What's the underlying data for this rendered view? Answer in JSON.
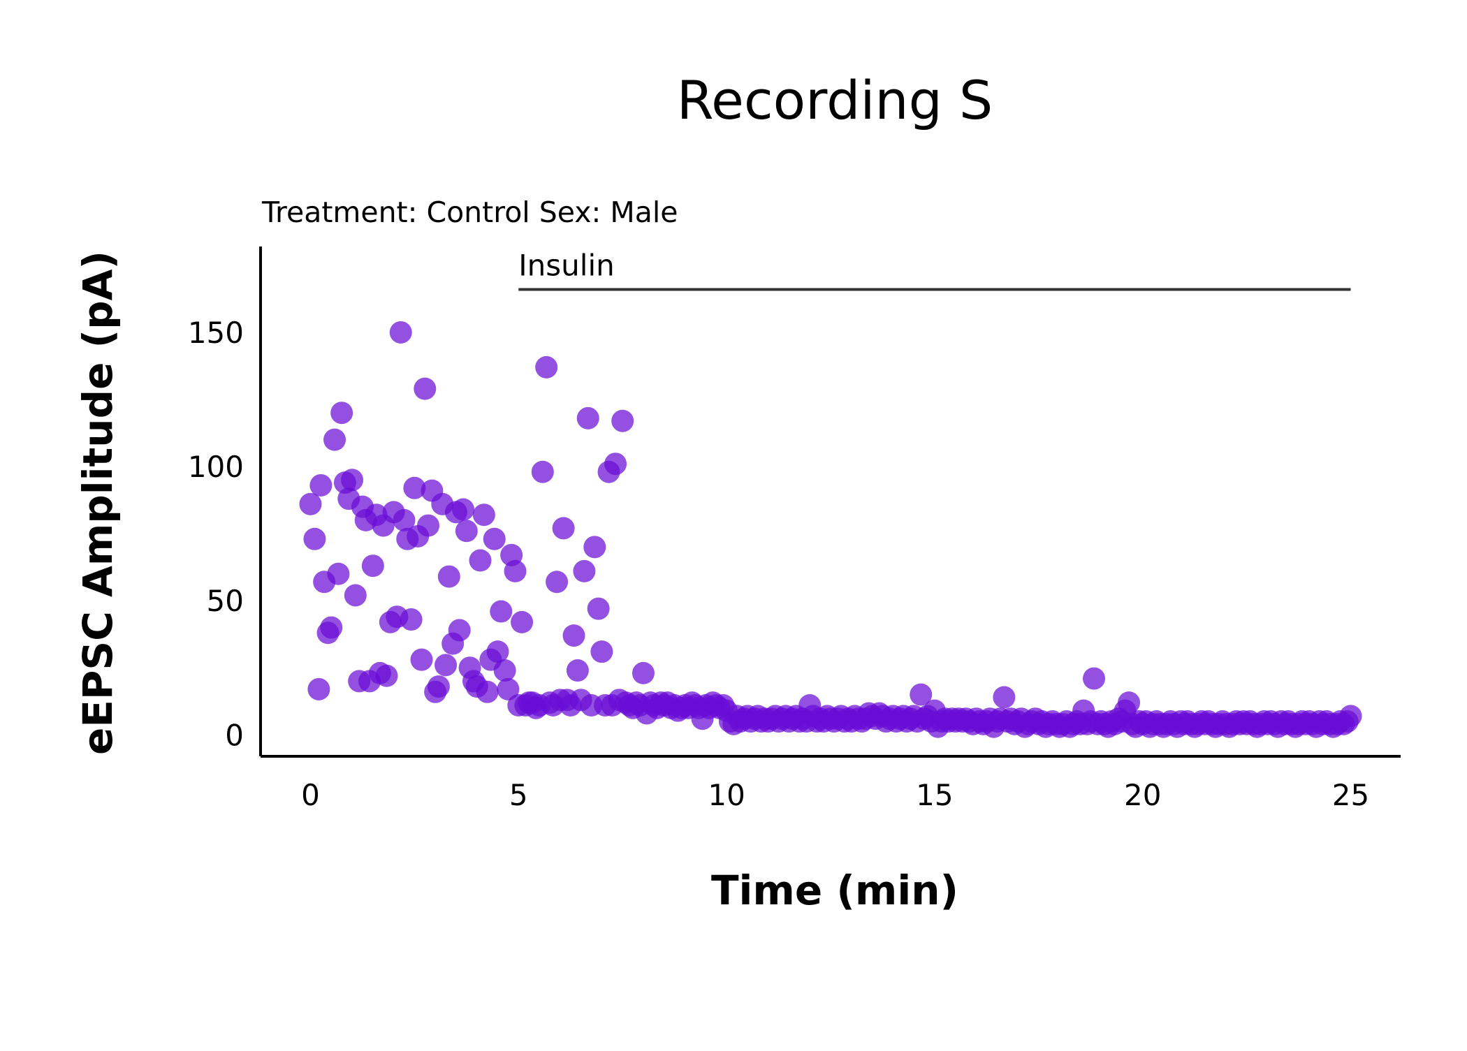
{
  "chart_data": {
    "type": "scatter",
    "title": "Recording S",
    "subtitle": "Treatment: Control  Sex: Male",
    "xlabel": "Time (min)",
    "ylabel": "eEPSC Amplitude (pA)",
    "xlim": [
      -1.2,
      26.2
    ],
    "ylim": [
      -8,
      182
    ],
    "xticks": [
      "0",
      "5",
      "10",
      "15",
      "20",
      "25"
    ],
    "yticks": [
      "0",
      "50",
      "100",
      "150"
    ],
    "grid": false,
    "point_color": "#6a0dd6",
    "annotation": {
      "label": "Insulin",
      "x_start": 5,
      "x_end": 25,
      "y": 166
    },
    "series": [
      {
        "points": [
          [
            0.0,
            86
          ],
          [
            0.1,
            73
          ],
          [
            0.2,
            17
          ],
          [
            0.25,
            93
          ],
          [
            0.33,
            57
          ],
          [
            0.42,
            38
          ],
          [
            0.5,
            40
          ],
          [
            0.58,
            110
          ],
          [
            0.67,
            60
          ],
          [
            0.75,
            120
          ],
          [
            0.83,
            94
          ],
          [
            0.92,
            88
          ],
          [
            1.0,
            95
          ],
          [
            1.08,
            52
          ],
          [
            1.17,
            20
          ],
          [
            1.25,
            85
          ],
          [
            1.33,
            80
          ],
          [
            1.42,
            20
          ],
          [
            1.5,
            63
          ],
          [
            1.58,
            82
          ],
          [
            1.67,
            23
          ],
          [
            1.75,
            78
          ],
          [
            1.83,
            22
          ],
          [
            1.92,
            42
          ],
          [
            2.0,
            83
          ],
          [
            2.08,
            44
          ],
          [
            2.17,
            150
          ],
          [
            2.25,
            80
          ],
          [
            2.33,
            73
          ],
          [
            2.42,
            43
          ],
          [
            2.5,
            92
          ],
          [
            2.58,
            74
          ],
          [
            2.67,
            28
          ],
          [
            2.75,
            129
          ],
          [
            2.83,
            78
          ],
          [
            2.92,
            91
          ],
          [
            3.0,
            16
          ],
          [
            3.08,
            18
          ],
          [
            3.17,
            86
          ],
          [
            3.25,
            26
          ],
          [
            3.33,
            59
          ],
          [
            3.42,
            34
          ],
          [
            3.5,
            83
          ],
          [
            3.58,
            39
          ],
          [
            3.67,
            84
          ],
          [
            3.75,
            76
          ],
          [
            3.83,
            25
          ],
          [
            3.92,
            20
          ],
          [
            4.0,
            18
          ],
          [
            4.08,
            65
          ],
          [
            4.17,
            82
          ],
          [
            4.25,
            16
          ],
          [
            4.33,
            28
          ],
          [
            4.42,
            73
          ],
          [
            4.5,
            31
          ],
          [
            4.58,
            46
          ],
          [
            4.67,
            24
          ],
          [
            4.75,
            17
          ],
          [
            4.83,
            67
          ],
          [
            4.92,
            61
          ],
          [
            5.0,
            11
          ],
          [
            5.08,
            42
          ],
          [
            5.17,
            11
          ],
          [
            5.25,
            12
          ],
          [
            5.33,
            12
          ],
          [
            5.42,
            10
          ],
          [
            5.5,
            11
          ],
          [
            5.58,
            98
          ],
          [
            5.67,
            137
          ],
          [
            5.75,
            12
          ],
          [
            5.83,
            11
          ],
          [
            5.92,
            57
          ],
          [
            6.0,
            13
          ],
          [
            6.08,
            77
          ],
          [
            6.17,
            13
          ],
          [
            6.25,
            11
          ],
          [
            6.33,
            37
          ],
          [
            6.42,
            24
          ],
          [
            6.5,
            13
          ],
          [
            6.58,
            61
          ],
          [
            6.67,
            118
          ],
          [
            6.75,
            11
          ],
          [
            6.83,
            70
          ],
          [
            6.92,
            47
          ],
          [
            7.0,
            31
          ],
          [
            7.08,
            11
          ],
          [
            7.17,
            98
          ],
          [
            7.25,
            11
          ],
          [
            7.33,
            101
          ],
          [
            7.42,
            13
          ],
          [
            7.5,
            117
          ],
          [
            7.58,
            12
          ],
          [
            7.67,
            11
          ],
          [
            7.75,
            10
          ],
          [
            7.83,
            12
          ],
          [
            7.92,
            11
          ],
          [
            8.0,
            23
          ],
          [
            8.08,
            8
          ],
          [
            8.17,
            12
          ],
          [
            8.25,
            11
          ],
          [
            8.33,
            10
          ],
          [
            8.42,
            12
          ],
          [
            8.5,
            11
          ],
          [
            8.58,
            12
          ],
          [
            8.67,
            10
          ],
          [
            8.75,
            11
          ],
          [
            8.83,
            9
          ],
          [
            8.92,
            10
          ],
          [
            9.0,
            11
          ],
          [
            9.08,
            10
          ],
          [
            9.17,
            12
          ],
          [
            9.25,
            11
          ],
          [
            9.33,
            10
          ],
          [
            9.42,
            6
          ],
          [
            9.5,
            11
          ],
          [
            9.58,
            10
          ],
          [
            9.67,
            12
          ],
          [
            9.75,
            11
          ],
          [
            9.83,
            10
          ],
          [
            9.92,
            11
          ],
          [
            10.0,
            9
          ],
          [
            10.08,
            5
          ],
          [
            10.17,
            4
          ],
          [
            10.25,
            7
          ],
          [
            10.33,
            5
          ],
          [
            10.42,
            6
          ],
          [
            10.5,
            7
          ],
          [
            10.58,
            5
          ],
          [
            10.67,
            6
          ],
          [
            10.75,
            7
          ],
          [
            10.83,
            5
          ],
          [
            10.92,
            6
          ],
          [
            11.0,
            5
          ],
          [
            11.08,
            6
          ],
          [
            11.17,
            7
          ],
          [
            11.25,
            5
          ],
          [
            11.33,
            6
          ],
          [
            11.42,
            7
          ],
          [
            11.5,
            5
          ],
          [
            11.58,
            6
          ],
          [
            11.67,
            7
          ],
          [
            11.75,
            5
          ],
          [
            11.83,
            6
          ],
          [
            11.92,
            5
          ],
          [
            12.0,
            11
          ],
          [
            12.08,
            7
          ],
          [
            12.17,
            5
          ],
          [
            12.25,
            6
          ],
          [
            12.33,
            5
          ],
          [
            12.42,
            7
          ],
          [
            12.5,
            6
          ],
          [
            12.58,
            5
          ],
          [
            12.67,
            6
          ],
          [
            12.75,
            7
          ],
          [
            12.83,
            5
          ],
          [
            12.92,
            6
          ],
          [
            13.0,
            5
          ],
          [
            13.08,
            7
          ],
          [
            13.17,
            6
          ],
          [
            13.25,
            5
          ],
          [
            13.33,
            6
          ],
          [
            13.42,
            8
          ],
          [
            13.5,
            7
          ],
          [
            13.58,
            6
          ],
          [
            13.67,
            8
          ],
          [
            13.75,
            7
          ],
          [
            13.83,
            5
          ],
          [
            13.92,
            6
          ],
          [
            14.0,
            7
          ],
          [
            14.08,
            5
          ],
          [
            14.17,
            6
          ],
          [
            14.25,
            7
          ],
          [
            14.33,
            5
          ],
          [
            14.42,
            6
          ],
          [
            14.5,
            7
          ],
          [
            14.58,
            5
          ],
          [
            14.67,
            15
          ],
          [
            14.75,
            6
          ],
          [
            14.83,
            7
          ],
          [
            14.92,
            5
          ],
          [
            15.0,
            9
          ],
          [
            15.08,
            3
          ],
          [
            15.17,
            5
          ],
          [
            15.25,
            6
          ],
          [
            15.33,
            5
          ],
          [
            15.42,
            6
          ],
          [
            15.5,
            5
          ],
          [
            15.58,
            6
          ],
          [
            15.67,
            5
          ],
          [
            15.75,
            6
          ],
          [
            15.83,
            5
          ],
          [
            15.92,
            4
          ],
          [
            16.0,
            6
          ],
          [
            16.08,
            5
          ],
          [
            16.17,
            4
          ],
          [
            16.25,
            5
          ],
          [
            16.33,
            6
          ],
          [
            16.42,
            3
          ],
          [
            16.5,
            5
          ],
          [
            16.58,
            6
          ],
          [
            16.67,
            14
          ],
          [
            16.75,
            5
          ],
          [
            16.83,
            6
          ],
          [
            16.92,
            4
          ],
          [
            17.0,
            5
          ],
          [
            17.08,
            6
          ],
          [
            17.17,
            3
          ],
          [
            17.25,
            4
          ],
          [
            17.33,
            5
          ],
          [
            17.42,
            6
          ],
          [
            17.5,
            4
          ],
          [
            17.58,
            5
          ],
          [
            17.67,
            3
          ],
          [
            17.75,
            4
          ],
          [
            17.83,
            5
          ],
          [
            17.92,
            4
          ],
          [
            18.0,
            3
          ],
          [
            18.08,
            4
          ],
          [
            18.17,
            5
          ],
          [
            18.25,
            3
          ],
          [
            18.33,
            4
          ],
          [
            18.42,
            5
          ],
          [
            18.5,
            4
          ],
          [
            18.58,
            9
          ],
          [
            18.67,
            4
          ],
          [
            18.75,
            5
          ],
          [
            18.83,
            21
          ],
          [
            18.92,
            4
          ],
          [
            19.0,
            5
          ],
          [
            19.08,
            4
          ],
          [
            19.17,
            3
          ],
          [
            19.25,
            5
          ],
          [
            19.33,
            4
          ],
          [
            19.42,
            6
          ],
          [
            19.5,
            5
          ],
          [
            19.58,
            9
          ],
          [
            19.67,
            12
          ],
          [
            19.75,
            4
          ],
          [
            19.83,
            3
          ],
          [
            19.92,
            5
          ],
          [
            20.0,
            4
          ],
          [
            20.08,
            5
          ],
          [
            20.17,
            3
          ],
          [
            20.25,
            4
          ],
          [
            20.33,
            5
          ],
          [
            20.42,
            4
          ],
          [
            20.5,
            3
          ],
          [
            20.58,
            4
          ],
          [
            20.67,
            5
          ],
          [
            20.75,
            4
          ],
          [
            20.83,
            3
          ],
          [
            20.92,
            5
          ],
          [
            21.0,
            4
          ],
          [
            21.08,
            5
          ],
          [
            21.17,
            4
          ],
          [
            21.25,
            3
          ],
          [
            21.33,
            4
          ],
          [
            21.42,
            5
          ],
          [
            21.5,
            4
          ],
          [
            21.58,
            5
          ],
          [
            21.67,
            4
          ],
          [
            21.75,
            3
          ],
          [
            21.83,
            4
          ],
          [
            21.92,
            5
          ],
          [
            22.0,
            4
          ],
          [
            22.08,
            3
          ],
          [
            22.17,
            4
          ],
          [
            22.25,
            5
          ],
          [
            22.33,
            4
          ],
          [
            22.42,
            5
          ],
          [
            22.5,
            4
          ],
          [
            22.58,
            5
          ],
          [
            22.67,
            4
          ],
          [
            22.75,
            3
          ],
          [
            22.83,
            4
          ],
          [
            22.92,
            5
          ],
          [
            23.0,
            4
          ],
          [
            23.08,
            5
          ],
          [
            23.17,
            4
          ],
          [
            23.25,
            3
          ],
          [
            23.33,
            5
          ],
          [
            23.42,
            4
          ],
          [
            23.5,
            5
          ],
          [
            23.58,
            4
          ],
          [
            23.67,
            3
          ],
          [
            23.75,
            4
          ],
          [
            23.83,
            5
          ],
          [
            23.92,
            4
          ],
          [
            24.0,
            5
          ],
          [
            24.08,
            4
          ],
          [
            24.17,
            3
          ],
          [
            24.25,
            5
          ],
          [
            24.33,
            4
          ],
          [
            24.42,
            5
          ],
          [
            24.5,
            4
          ],
          [
            24.58,
            3
          ],
          [
            24.67,
            4
          ],
          [
            24.75,
            5
          ],
          [
            24.83,
            4
          ],
          [
            24.92,
            5
          ],
          [
            25.0,
            7
          ]
        ]
      }
    ]
  }
}
